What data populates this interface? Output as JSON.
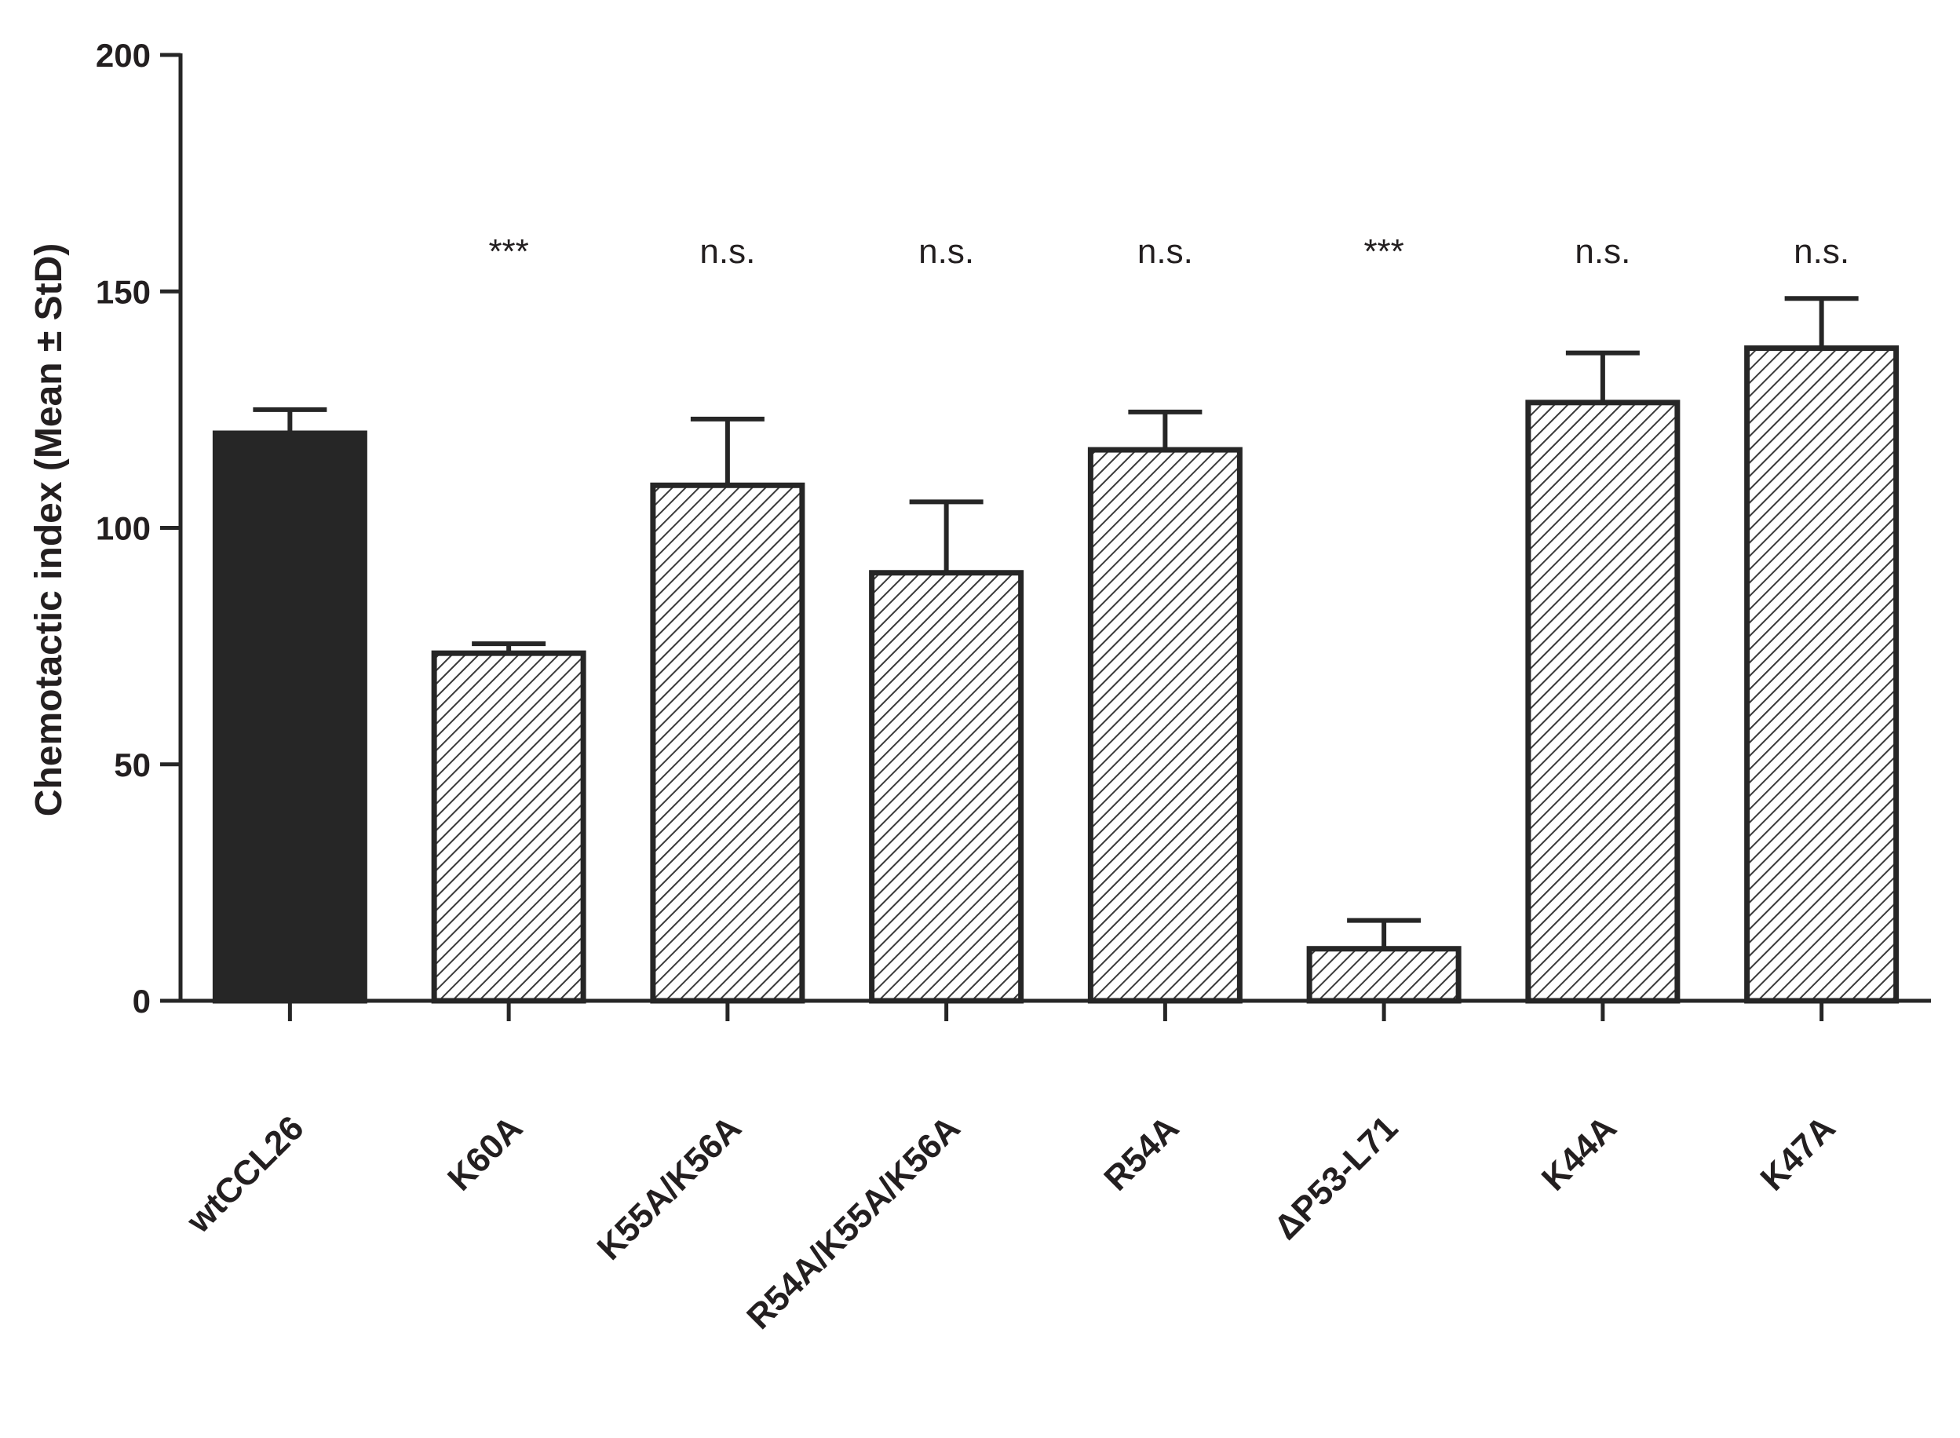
{
  "chart_data": {
    "type": "bar",
    "title": "",
    "xlabel": "",
    "ylabel": "Chemotactic index (Mean ± StD)",
    "ylim": [
      0,
      200
    ],
    "yticks": [
      0,
      50,
      100,
      150,
      200
    ],
    "grid": false,
    "categories": [
      "wtCCL26",
      "K60A",
      "K55A/K56A",
      "R54A/K55A/K56A",
      "R54A",
      "ΔP53-L71",
      "K44A",
      "K47A"
    ],
    "values": [
      120,
      73.5,
      109,
      90.5,
      116.5,
      11,
      126.5,
      138
    ],
    "errors": [
      5,
      2,
      14,
      15,
      8,
      6,
      10.5,
      10.5
    ],
    "significance": [
      "",
      "***",
      "n.s.",
      "n.s.",
      "n.s.",
      "***",
      "n.s.",
      "n.s."
    ],
    "fill_styles": [
      "solid",
      "hatched",
      "hatched",
      "hatched",
      "hatched",
      "hatched",
      "hatched",
      "hatched"
    ],
    "colors": {
      "bar_solid": "#262626",
      "outline": "#262626",
      "hatch": "#3a3a3a",
      "background": "#ffffff"
    }
  }
}
